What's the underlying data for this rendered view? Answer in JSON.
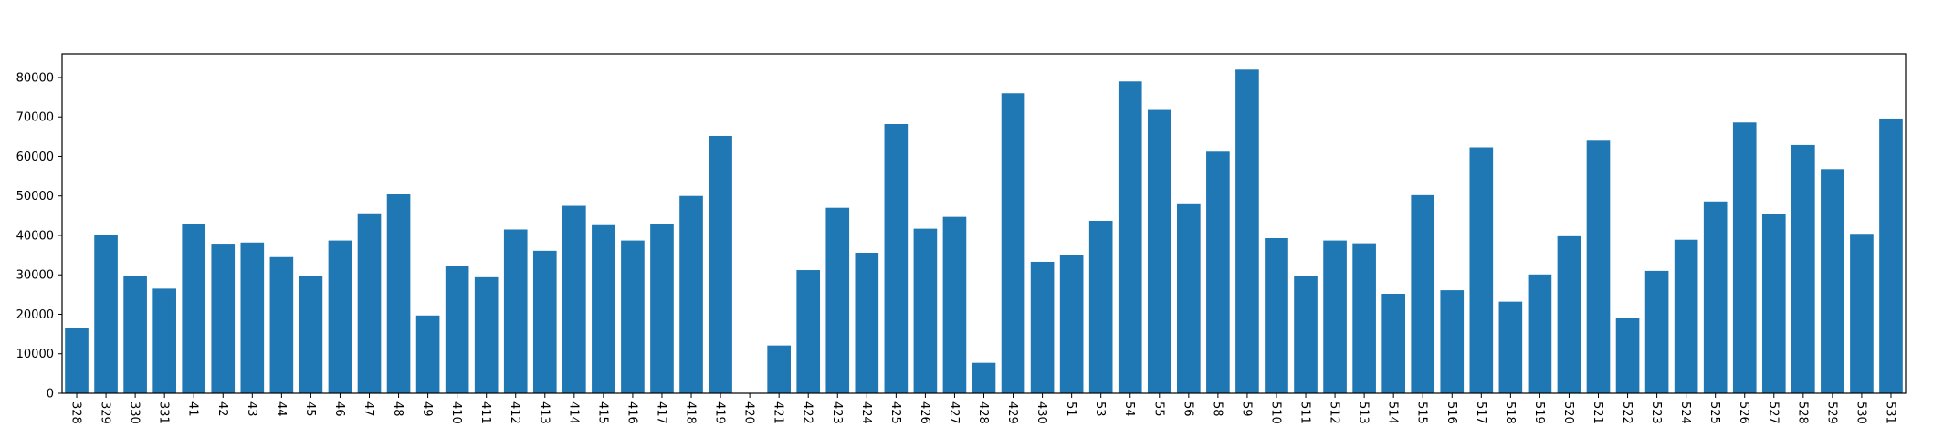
{
  "chart_data": {
    "type": "bar",
    "title": "",
    "xlabel": "",
    "ylabel": "",
    "ylim": [
      0,
      86000
    ],
    "yticks": [
      0,
      10000,
      20000,
      30000,
      40000,
      50000,
      60000,
      70000,
      80000
    ],
    "ytick_labels": [
      "0",
      "10000",
      "20000",
      "30000",
      "40000",
      "50000",
      "60000",
      "70000",
      "80000"
    ],
    "grid": false,
    "legend": "none",
    "bar_color": "#1f77b4",
    "categories": [
      "328",
      "329",
      "330",
      "331",
      "41",
      "42",
      "43",
      "44",
      "45",
      "46",
      "47",
      "48",
      "49",
      "410",
      "411",
      "412",
      "413",
      "414",
      "415",
      "416",
      "417",
      "418",
      "419",
      "420",
      "421",
      "422",
      "423",
      "424",
      "425",
      "426",
      "427",
      "428",
      "429",
      "430",
      "51",
      "53",
      "54",
      "55",
      "56",
      "58",
      "59",
      "510",
      "511",
      "512",
      "513",
      "514",
      "515",
      "516",
      "517",
      "518",
      "519",
      "520",
      "521",
      "522",
      "523",
      "524",
      "525",
      "526",
      "527",
      "528",
      "529",
      "530",
      "531"
    ],
    "values": [
      16500,
      40200,
      29600,
      26500,
      43000,
      37900,
      38200,
      34500,
      29600,
      38700,
      45600,
      50400,
      19700,
      32200,
      29400,
      41500,
      36100,
      47500,
      42600,
      38700,
      42900,
      50000,
      65200,
      0,
      12100,
      31200,
      47000,
      35600,
      68200,
      41700,
      44700,
      7700,
      76000,
      33300,
      35000,
      43700,
      79000,
      72000,
      47900,
      61200,
      82000,
      39300,
      29600,
      38700,
      38000,
      25200,
      50200,
      26100,
      62300,
      23200,
      30100,
      39800,
      64200,
      19000,
      31000,
      38900,
      48600,
      68600,
      45400,
      62900,
      56800,
      40400,
      69600
    ]
  }
}
